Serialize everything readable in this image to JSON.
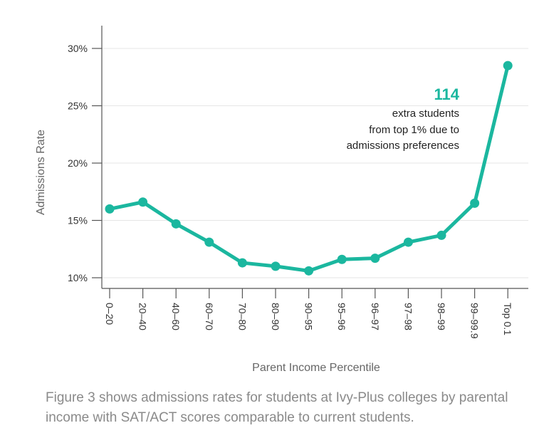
{
  "chart_data": {
    "type": "line",
    "title": "",
    "xlabel": "Parent Income Percentile",
    "ylabel": "Admissions Rate",
    "categories": [
      "0–20",
      "20–40",
      "40–60",
      "60–70",
      "70–80",
      "80–90",
      "90–95",
      "95–96",
      "96–97",
      "97–98",
      "98–99",
      "99–99.9",
      "Top 0.1"
    ],
    "values": [
      16.0,
      16.6,
      14.7,
      13.1,
      11.3,
      11.0,
      10.6,
      11.6,
      11.7,
      13.1,
      13.7,
      16.5,
      28.5
    ],
    "ylim": [
      9,
      31
    ],
    "yticks": [
      10,
      15,
      20,
      25,
      30
    ],
    "ytick_labels": [
      "10%",
      "15%",
      "20%",
      "25%",
      "30%"
    ],
    "grid": true,
    "annotation": {
      "number": "114",
      "lines": [
        "extra students",
        "from top 1% due to",
        "admissions preferences"
      ]
    }
  },
  "colors": {
    "series": "#1bb79f",
    "grid": "#e6e6e6",
    "axis": "#555555"
  },
  "caption": "Figure 3 shows admissions rates for students at Ivy-Plus colleges by parental income with SAT/ACT scores comparable to current students."
}
